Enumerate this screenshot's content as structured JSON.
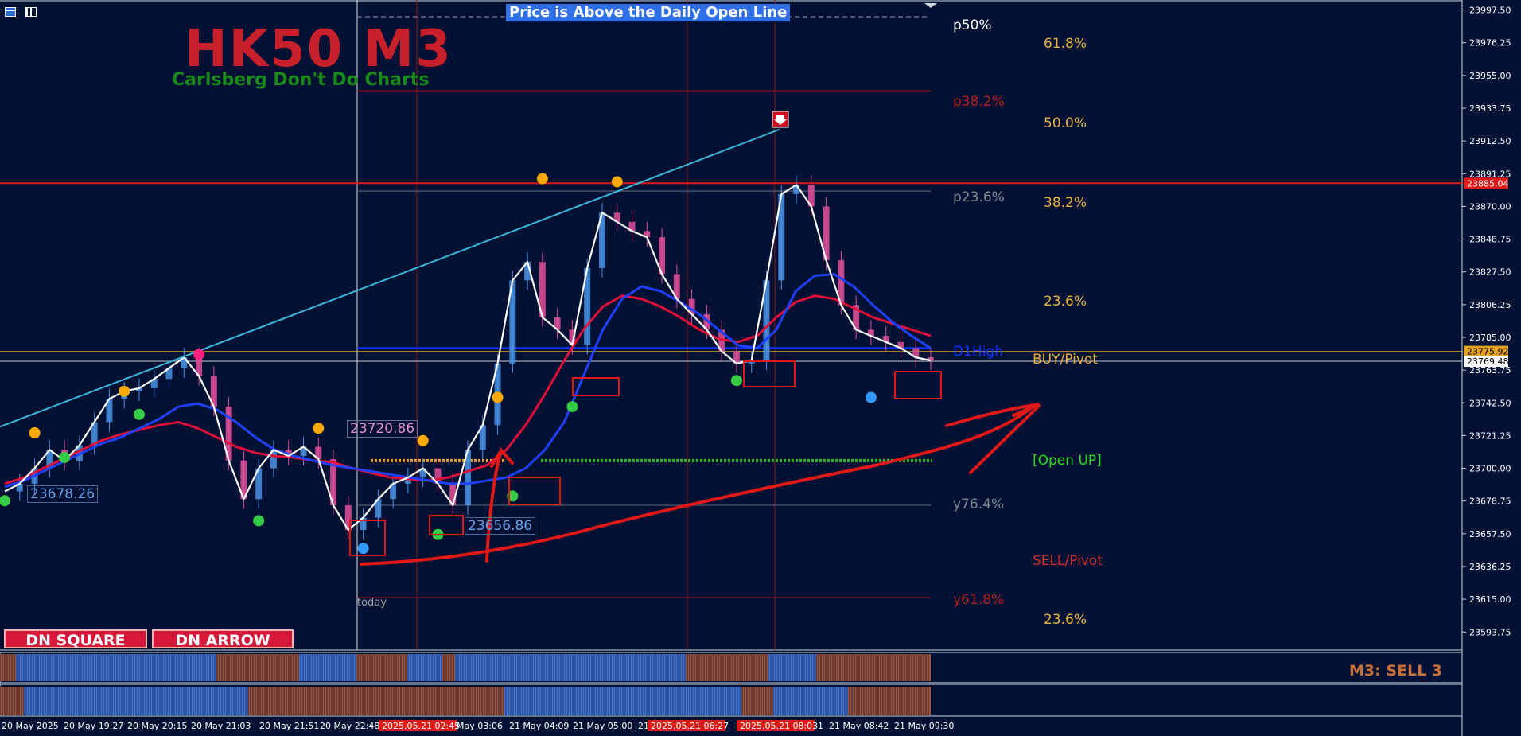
{
  "chart": {
    "symbol_title": "HK50 M3",
    "subtitle": "Carlsberg Don't Do Charts",
    "banner": "Price is Above the Daily Open Line",
    "buttons": {
      "dn_square": "DN SQUARE",
      "dn_arrow": "DN ARROW"
    },
    "signal": "M3: SELL 3",
    "today_label": "today",
    "d1high_label": "D1High",
    "colors": {
      "background": "#001133",
      "bull": "#4a90e2",
      "bear": "#e0509a",
      "fast_ma": "#ffffff",
      "mid_ma": "#2040ff",
      "slow_ma": "#e0103a",
      "trendline": "#38b8d8",
      "accent_red": "#e01818"
    }
  },
  "chart_data": {
    "type": "line",
    "ylim": [
      23582,
      24004
    ],
    "y_ticks": [
      "23997.50",
      "23976.25",
      "23955.00",
      "23933.75",
      "23912.50",
      "23891.25",
      "23870.00",
      "23848.75",
      "23827.50",
      "23806.25",
      "23785.00",
      "23763.75",
      "23742.50",
      "23721.25",
      "23700.00",
      "23678.75",
      "23657.50",
      "23636.25",
      "23615.00",
      "23593.75"
    ],
    "x_ticks": [
      "20 May 2025",
      "20 May 19:27",
      "20 May 20:15",
      "20 May 21:03",
      "20 May 21:51",
      "20 May 22:48",
      "2025.05.21 02:45",
      "May 03:06",
      "21 May 04:09",
      "21 May 05:00",
      "21",
      "2025.05.21 06:27",
      "2025.05.21 08:03",
      "1",
      "21 May 08:42",
      "21 May 09:30"
    ],
    "price_tags": [
      {
        "text": "23885.04",
        "value": 23885.04,
        "bg": "#e01818",
        "fg": "#ffffff"
      },
      {
        "text": "23775.92",
        "value": 23775.92,
        "bg": "#e8a020",
        "fg": "#000000"
      },
      {
        "text": "23769.48",
        "value": 23769.48,
        "bg": "#ffffff",
        "fg": "#000000"
      }
    ],
    "horizontal_levels": [
      {
        "name": "resistance",
        "value": 23885.04,
        "color": "#e01818"
      },
      {
        "name": "d1high",
        "value": 23778,
        "color": "#1030ff"
      },
      {
        "name": "open",
        "value": 23705,
        "color": "#22bb22"
      }
    ],
    "price_labels": [
      {
        "text": "23720.86",
        "value": 23720.86
      },
      {
        "text": "23678.26",
        "value": 23678.26
      },
      {
        "text": "23656.86",
        "value": 23656.86
      }
    ],
    "fib_labels": [
      {
        "text": "p50%",
        "color": "#ffffff"
      },
      {
        "text": "61.8%",
        "color": "#e8b040"
      },
      {
        "text": "p38.2%",
        "color": "#b02020"
      },
      {
        "text": "50.0%",
        "color": "#e8b040"
      },
      {
        "text": "p23.6%",
        "color": "#808890"
      },
      {
        "text": "38.2%",
        "color": "#e8b040"
      },
      {
        "text": "23.6%",
        "color": "#e8b040"
      },
      {
        "text": "BUY/Pivot",
        "color": "#e8b040"
      },
      {
        "text": "[Open UP]",
        "color": "#22dd22"
      },
      {
        "text": "y76.4%",
        "color": "#808890"
      },
      {
        "text": "SELL/Pivot",
        "color": "#d03030"
      },
      {
        "text": "y61.8%",
        "color": "#b02020"
      },
      {
        "text": "23.6%",
        "color": "#e8b040"
      }
    ],
    "price_series": [
      23685,
      23690,
      23700,
      23712,
      23705,
      23715,
      23730,
      23745,
      23750,
      23752,
      23758,
      23765,
      23772,
      23760,
      23740,
      23705,
      23680,
      23700,
      23712,
      23708,
      23714,
      23706,
      23676,
      23660,
      23668,
      23680,
      23690,
      23694,
      23700,
      23690,
      23676,
      23712,
      23728,
      23768,
      23822,
      23834,
      23798,
      23790,
      23780,
      23830,
      23866,
      23860,
      23854,
      23850,
      23826,
      23810,
      23800,
      23790,
      23776,
      23768,
      23770,
      23822,
      23878,
      23884,
      23870,
      23835,
      23806,
      23790,
      23786,
      23782,
      23778,
      23772,
      23770
    ],
    "mid_ma_series": [
      23688,
      23692,
      23698,
      23704,
      23710,
      23716,
      23720,
      23726,
      23732,
      23740,
      23742,
      23738,
      23730,
      23720,
      23712,
      23708,
      23705,
      23702,
      23700,
      23698,
      23696,
      23694,
      23692,
      23690,
      23690,
      23692,
      23694,
      23700,
      23712,
      23730,
      23760,
      23790,
      23810,
      23818,
      23815,
      23808,
      23800,
      23790,
      23780,
      23778,
      23790,
      23815,
      23825,
      23826,
      23818,
      23806,
      23795,
      23786,
      23778
    ],
    "slow_ma_series": [
      23690,
      23694,
      23700,
      23706,
      23712,
      23718,
      23722,
      23725,
      23728,
      23730,
      23726,
      23720,
      23714,
      23710,
      23708,
      23707,
      23705,
      23704,
      23700,
      23697,
      23694,
      23693,
      23692,
      23694,
      23698,
      23702,
      23712,
      23728,
      23748,
      23770,
      23790,
      23805,
      23812,
      23810,
      23805,
      23798,
      23790,
      23784,
      23782,
      23786,
      23798,
      23808,
      23812,
      23810,
      23804,
      23798,
      23794,
      23790,
      23786
    ],
    "signal_dots": [
      {
        "color": "#33cc44",
        "value": 23679,
        "i": 0
      },
      {
        "color": "#ffaa00",
        "value": 23723,
        "i": 2
      },
      {
        "color": "#33cc44",
        "value": 23707,
        "i": 4
      },
      {
        "color": "#ffaa00",
        "value": 23750,
        "i": 8
      },
      {
        "color": "#33cc44",
        "value": 23735,
        "i": 9
      },
      {
        "color": "#ff2080",
        "value": 23774,
        "i": 13
      },
      {
        "color": "#33cc44",
        "value": 23666,
        "i": 17
      },
      {
        "color": "#ffaa00",
        "value": 23726,
        "i": 21
      },
      {
        "color": "#3399ff",
        "value": 23648,
        "i": 24
      },
      {
        "color": "#ffaa00",
        "value": 23718,
        "i": 28
      },
      {
        "color": "#33cc44",
        "value": 23657,
        "i": 29
      },
      {
        "color": "#ffaa00",
        "value": 23746,
        "i": 33
      },
      {
        "color": "#33cc44",
        "value": 23682,
        "i": 34
      },
      {
        "color": "#ffaa00",
        "value": 23888,
        "i": 36
      },
      {
        "color": "#33cc44",
        "value": 23740,
        "i": 38
      },
      {
        "color": "#ffaa00",
        "value": 23886,
        "i": 41
      },
      {
        "color": "#33cc44",
        "value": 23757,
        "i": 49
      },
      {
        "color": "#3399ff",
        "value": 23746,
        "i": 58
      }
    ]
  }
}
